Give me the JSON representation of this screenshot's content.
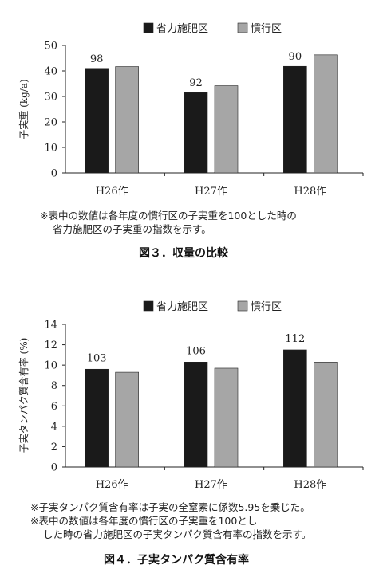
{
  "chart_data": [
    {
      "type": "bar",
      "categories": [
        "H26作",
        "H27作",
        "H28作"
      ],
      "series": [
        {
          "name": "省力施肥区",
          "values": [
            41,
            31.5,
            41.8
          ],
          "color": "#1a1a1a"
        },
        {
          "name": "慣行区",
          "values": [
            41.7,
            34.2,
            46.3
          ],
          "color": "#a6a6a6"
        }
      ],
      "data_labels": [
        "98",
        "92",
        "90"
      ],
      "ylabel": "子実重 (kg/a)",
      "ylim": [
        0,
        50
      ],
      "yticks": [
        "0",
        "10",
        "20",
        "30",
        "40",
        "50"
      ],
      "legend_position": "top-right",
      "grid": false
    },
    {
      "type": "bar",
      "categories": [
        "H26作",
        "H27作",
        "H28作"
      ],
      "series": [
        {
          "name": "省力施肥区",
          "values": [
            9.6,
            10.3,
            11.5
          ],
          "color": "#1a1a1a"
        },
        {
          "name": "慣行区",
          "values": [
            9.3,
            9.7,
            10.3
          ],
          "color": "#a6a6a6"
        }
      ],
      "data_labels": [
        "103",
        "106",
        "112"
      ],
      "ylabel": "子実タンパク質含有率 (%)",
      "ylim": [
        0,
        14
      ],
      "yticks": [
        "0",
        "2",
        "4",
        "6",
        "8",
        "10",
        "12",
        "14"
      ],
      "legend_position": "top-right",
      "grid": false
    }
  ],
  "figure1": {
    "note_line1": "※表中の数値は各年度の慣行区の子実重を100とした時の",
    "note_line2": "省力施肥区の子実重の指数を示す。",
    "caption": "図３．収量の比較"
  },
  "figure2": {
    "note_line1": "※子実タンパク質含有率は子実の全窒素に係数5.95を乗じた。",
    "note_line2": "※表中の数値は各年度の慣行区の子実重を100とし",
    "note_line3": "した時の省力施肥区の子実タンパク質含有率の指数を示す。",
    "caption": "図４．子実タンパク質含有率"
  }
}
